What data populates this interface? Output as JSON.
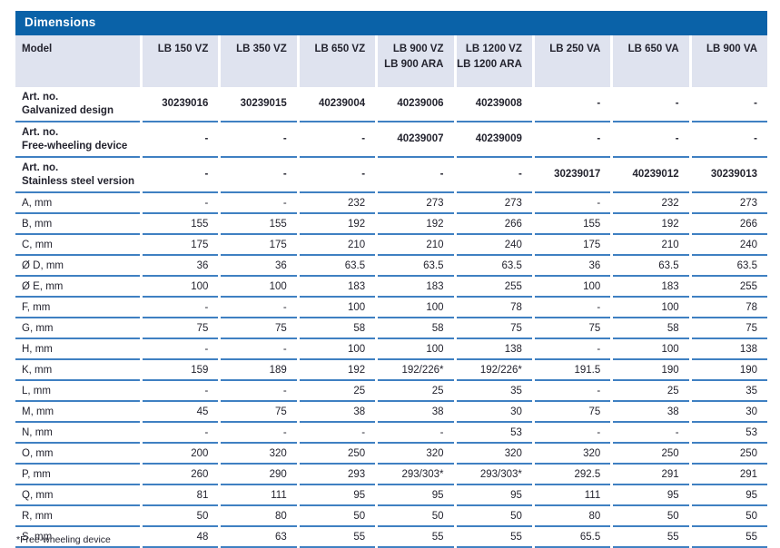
{
  "title": "Dimensions",
  "colors": {
    "accent_blue": "#0a62a8",
    "header_row_bg": "#dfe3ef",
    "rule_blue": "#3f80c2",
    "text": "#23232e"
  },
  "table": {
    "label_header": "Model",
    "columns": [
      "LB 150 VZ",
      "LB 350 VZ",
      "LB 650 VZ",
      "LB 900 VZ\nLB 900 ARA",
      "LB 1200 VZ\nLB 1200 ARA",
      "LB 250 VA",
      "LB 650 VA",
      "LB 900 VA"
    ],
    "art_rows": [
      {
        "label": "Art. no.\nGalvanized design",
        "values": [
          "30239016",
          "30239015",
          "40239004",
          "40239006",
          "40239008",
          "-",
          "-",
          "-"
        ]
      },
      {
        "label": "Art. no.\nFree-wheeling device",
        "values": [
          "-",
          "-",
          "-",
          "40239007",
          "40239009",
          "-",
          "-",
          "-"
        ]
      },
      {
        "label": "Art. no.\nStainless steel version",
        "values": [
          "-",
          "-",
          "-",
          "-",
          "-",
          "30239017",
          "40239012",
          "30239013"
        ]
      }
    ],
    "dim_rows": [
      {
        "label": "A, mm",
        "values": [
          "-",
          "-",
          "232",
          "273",
          "273",
          "-",
          "232",
          "273"
        ]
      },
      {
        "label": "B, mm",
        "values": [
          "155",
          "155",
          "192",
          "192",
          "266",
          "155",
          "192",
          "266"
        ]
      },
      {
        "label": "C, mm",
        "values": [
          "175",
          "175",
          "210",
          "210",
          "240",
          "175",
          "210",
          "240"
        ]
      },
      {
        "label": "Ø D, mm",
        "values": [
          "36",
          "36",
          "63.5",
          "63.5",
          "63.5",
          "36",
          "63.5",
          "63.5"
        ]
      },
      {
        "label": "Ø E, mm",
        "values": [
          "100",
          "100",
          "183",
          "183",
          "255",
          "100",
          "183",
          "255"
        ]
      },
      {
        "label": "F, mm",
        "values": [
          "-",
          "-",
          "100",
          "100",
          "78",
          "-",
          "100",
          "78"
        ]
      },
      {
        "label": "G, mm",
        "values": [
          "75",
          "75",
          "58",
          "58",
          "75",
          "75",
          "58",
          "75"
        ]
      },
      {
        "label": "H, mm",
        "values": [
          "-",
          "-",
          "100",
          "100",
          "138",
          "-",
          "100",
          "138"
        ]
      },
      {
        "label": "K, mm",
        "values": [
          "159",
          "189",
          "192",
          "192/226*",
          "192/226*",
          "191.5",
          "190",
          "190"
        ]
      },
      {
        "label": "L, mm",
        "values": [
          "-",
          "-",
          "25",
          "25",
          "35",
          "-",
          "25",
          "35"
        ]
      },
      {
        "label": "M, mm",
        "values": [
          "45",
          "75",
          "38",
          "38",
          "30",
          "75",
          "38",
          "30"
        ]
      },
      {
        "label": "N, mm",
        "values": [
          "-",
          "-",
          "-",
          "-",
          "53",
          "-",
          "-",
          "53"
        ]
      },
      {
        "label": "O, mm",
        "values": [
          "200",
          "320",
          "250",
          "320",
          "320",
          "320",
          "250",
          "250"
        ]
      },
      {
        "label": "P, mm",
        "values": [
          "260",
          "290",
          "293",
          "293/303*",
          "293/303*",
          "292.5",
          "291",
          "291"
        ]
      },
      {
        "label": "Q, mm",
        "values": [
          "81",
          "111",
          "95",
          "95",
          "95",
          "111",
          "95",
          "95"
        ]
      },
      {
        "label": "R, mm",
        "values": [
          "50",
          "80",
          "50",
          "50",
          "50",
          "80",
          "50",
          "50"
        ]
      },
      {
        "label": "S, mm",
        "values": [
          "48",
          "63",
          "55",
          "55",
          "55",
          "65.5",
          "55",
          "55"
        ]
      }
    ]
  },
  "footnote": "*Free-wheeling device"
}
